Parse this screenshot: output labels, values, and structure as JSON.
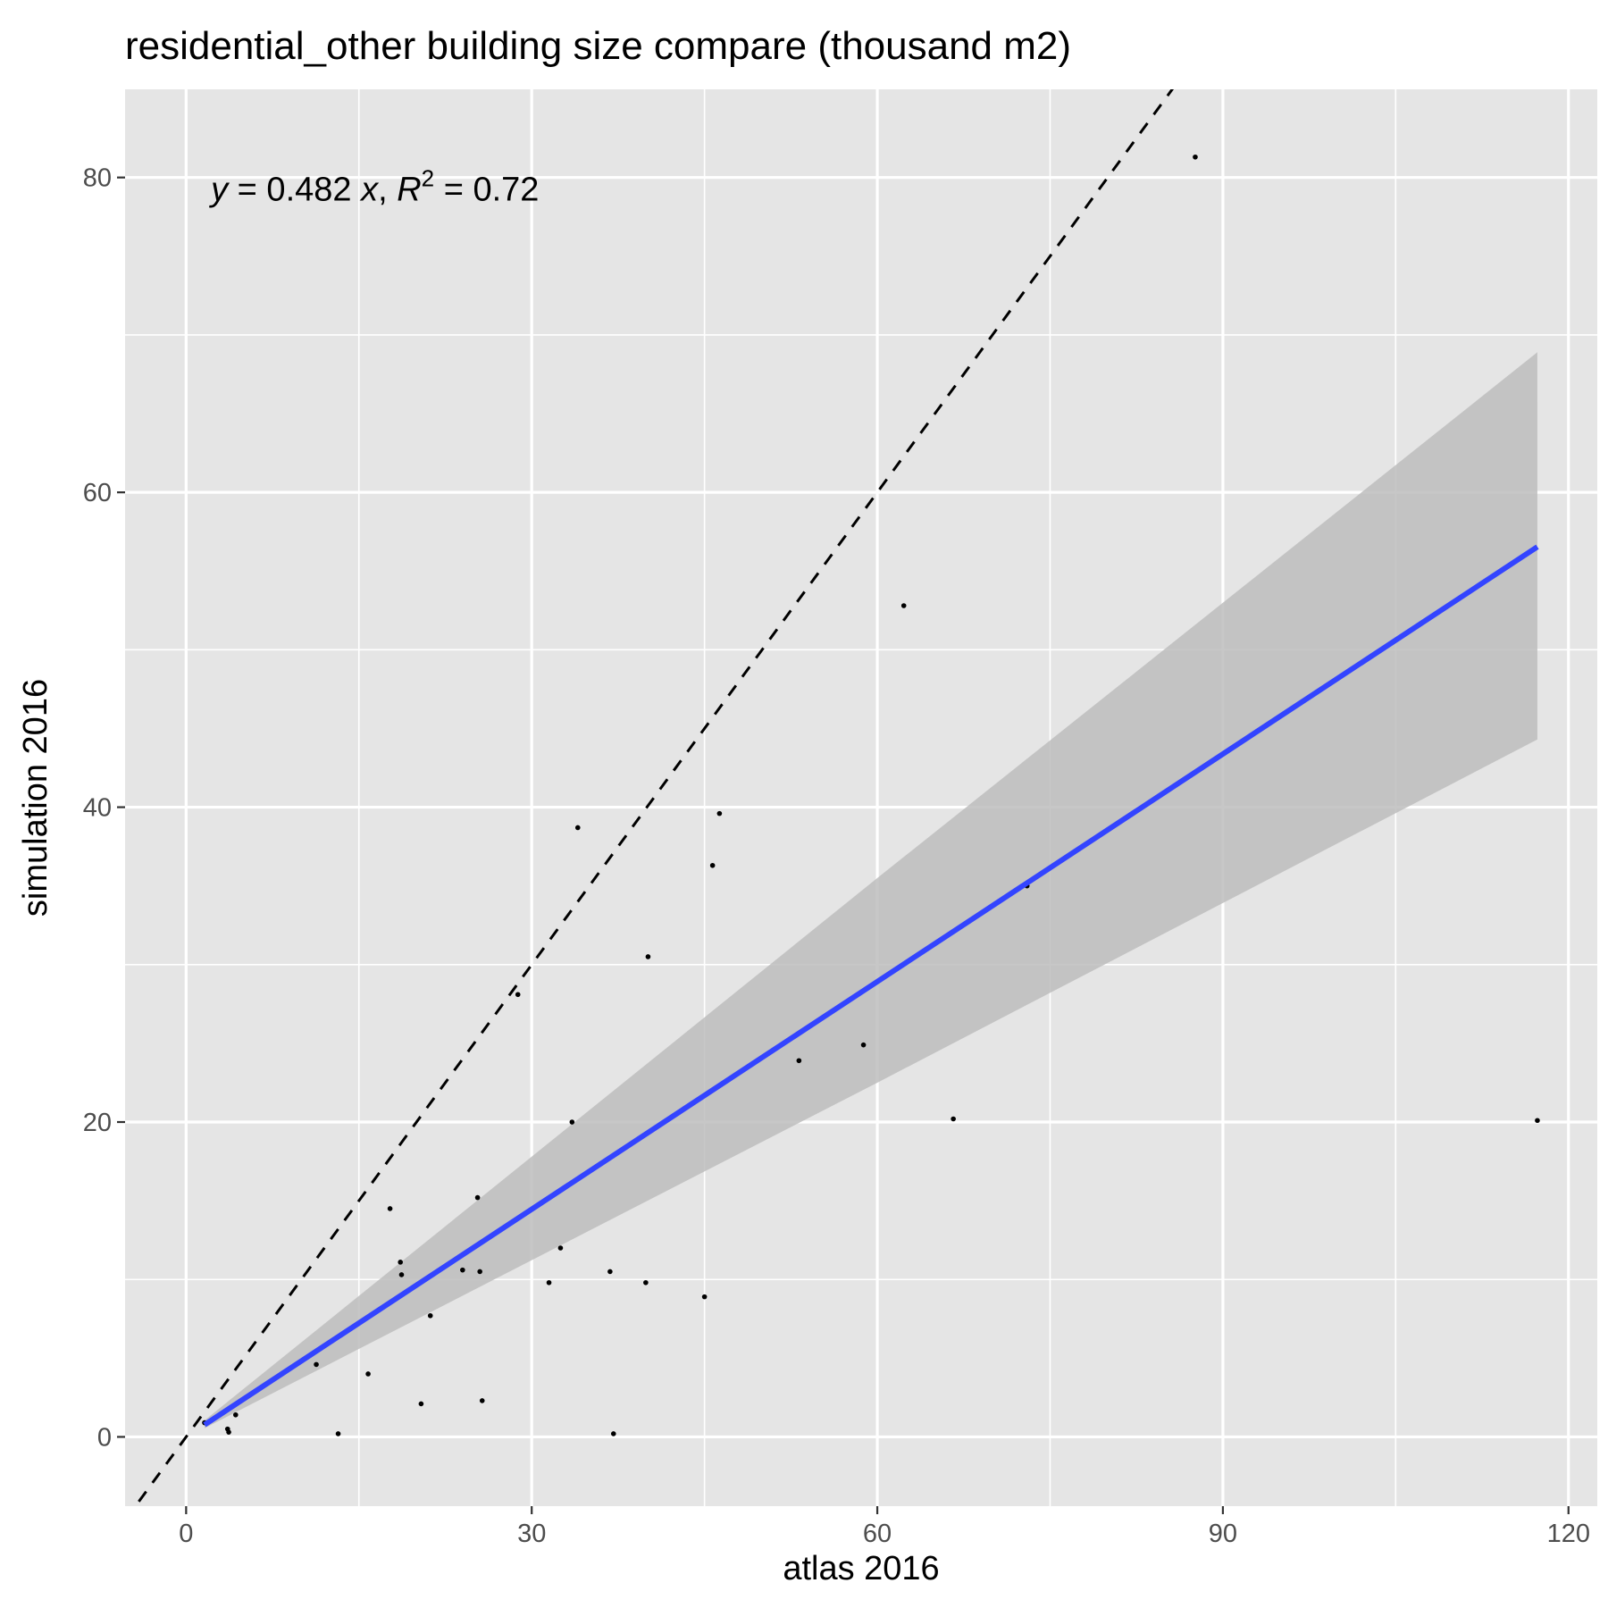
{
  "chart_data": {
    "type": "scatter",
    "title": "residential_other building size compare (thousand m2)",
    "xlabel": "atlas 2016",
    "ylabel": "simulation 2016",
    "xlim": [
      -5.3,
      122.5
    ],
    "ylim": [
      -4.4,
      85.6
    ],
    "x_ticks": [
      0,
      30,
      60,
      90,
      120
    ],
    "y_ticks": [
      0,
      20,
      40,
      60,
      80
    ],
    "x_tick_labels": [
      "0",
      "30",
      "60",
      "90",
      "120"
    ],
    "y_tick_labels": [
      "0",
      "20",
      "40",
      "60",
      "80"
    ],
    "grid": true,
    "legend": "none",
    "annotation": {
      "y": "y",
      "eq": " = 0.482 ",
      "x": "x",
      "sep": ", ",
      "R": "R",
      "sup": "2",
      "r2": " = 0.72",
      "at": [
        2,
        80
      ]
    },
    "identity_line": {
      "slope": 1,
      "intercept": 0,
      "style": "dashed",
      "color": "#000000"
    },
    "fit_line": {
      "slope": 0.482,
      "x_range": [
        1.6,
        117.3
      ],
      "color": "#3344ff",
      "ci_band": [
        {
          "x": 1.6,
          "lo": 0.55,
          "hi": 1.05
        },
        {
          "x": 60,
          "lo": 22.5,
          "hi": 35.5
        },
        {
          "x": 117.3,
          "lo": 44.3,
          "hi": 68.9
        }
      ],
      "ci_color": "#bdbdbd"
    },
    "points": [
      {
        "x": 1.6,
        "y": 0.9
      },
      {
        "x": 3.6,
        "y": 0.5
      },
      {
        "x": 3.7,
        "y": 0.3
      },
      {
        "x": 4.3,
        "y": 1.4
      },
      {
        "x": 11.3,
        "y": 4.6
      },
      {
        "x": 13.2,
        "y": 0.2
      },
      {
        "x": 15.8,
        "y": 4.0
      },
      {
        "x": 17.7,
        "y": 14.5
      },
      {
        "x": 18.6,
        "y": 11.1
      },
      {
        "x": 18.7,
        "y": 10.3
      },
      {
        "x": 20.4,
        "y": 2.1
      },
      {
        "x": 21.2,
        "y": 7.7
      },
      {
        "x": 24.0,
        "y": 10.6
      },
      {
        "x": 25.3,
        "y": 15.2
      },
      {
        "x": 25.5,
        "y": 10.5
      },
      {
        "x": 25.7,
        "y": 2.3
      },
      {
        "x": 28.8,
        "y": 28.1
      },
      {
        "x": 31.5,
        "y": 9.8
      },
      {
        "x": 32.5,
        "y": 12.0
      },
      {
        "x": 33.5,
        "y": 20.0
      },
      {
        "x": 34.0,
        "y": 38.7
      },
      {
        "x": 36.8,
        "y": 10.5
      },
      {
        "x": 37.1,
        "y": 0.2
      },
      {
        "x": 39.9,
        "y": 9.8
      },
      {
        "x": 40.1,
        "y": 30.5
      },
      {
        "x": 45.0,
        "y": 8.9
      },
      {
        "x": 45.7,
        "y": 36.3
      },
      {
        "x": 46.3,
        "y": 39.6
      },
      {
        "x": 53.2,
        "y": 23.9
      },
      {
        "x": 58.8,
        "y": 24.9
      },
      {
        "x": 62.3,
        "y": 52.8
      },
      {
        "x": 66.6,
        "y": 20.2
      },
      {
        "x": 73.0,
        "y": 35.0
      },
      {
        "x": 87.6,
        "y": 81.3
      },
      {
        "x": 117.3,
        "y": 20.1
      }
    ]
  }
}
